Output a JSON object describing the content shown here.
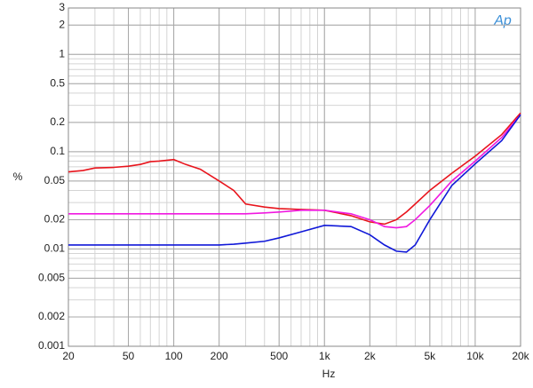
{
  "chart_data": {
    "type": "line",
    "x_label": "Hz",
    "y_label": "%",
    "logo": "Ap",
    "x": [
      20,
      25,
      30,
      40,
      50,
      60,
      70,
      80,
      100,
      120,
      150,
      200,
      250,
      300,
      400,
      500,
      700,
      1000,
      1500,
      2000,
      2500,
      3000,
      3500,
      4000,
      5000,
      7000,
      10000,
      15000,
      20000
    ],
    "series": [
      {
        "color": "#e8141c",
        "values": [
          0.062,
          0.064,
          0.068,
          0.069,
          0.071,
          0.074,
          0.079,
          0.08,
          0.083,
          0.074,
          0.066,
          0.05,
          0.04,
          0.029,
          0.027,
          0.026,
          0.0255,
          0.025,
          0.022,
          0.019,
          0.018,
          0.02,
          0.024,
          0.029,
          0.04,
          0.06,
          0.09,
          0.15,
          0.25
        ]
      },
      {
        "color": "#f018e0",
        "values": [
          0.023,
          0.023,
          0.023,
          0.023,
          0.023,
          0.023,
          0.023,
          0.023,
          0.023,
          0.023,
          0.023,
          0.023,
          0.023,
          0.023,
          0.0235,
          0.024,
          0.025,
          0.025,
          0.023,
          0.02,
          0.017,
          0.0165,
          0.017,
          0.02,
          0.028,
          0.05,
          0.08,
          0.14,
          0.24
        ]
      },
      {
        "color": "#1018d8",
        "values": [
          0.011,
          0.011,
          0.011,
          0.011,
          0.011,
          0.011,
          0.011,
          0.011,
          0.011,
          0.011,
          0.011,
          0.011,
          0.0112,
          0.0115,
          0.012,
          0.013,
          0.015,
          0.0175,
          0.017,
          0.014,
          0.011,
          0.0095,
          0.0093,
          0.011,
          0.02,
          0.045,
          0.075,
          0.13,
          0.24
        ]
      }
    ],
    "xlim": [
      20,
      20000
    ],
    "ylim": [
      0.001,
      3
    ],
    "x_log": true,
    "y_log": true,
    "grid": true,
    "minor_grid": true,
    "xticks": [
      20,
      50,
      100,
      200,
      500,
      {
        "value": 1000,
        "label": "1k"
      },
      {
        "value": 2000,
        "label": "2k"
      },
      {
        "value": 5000,
        "label": "5k"
      },
      {
        "value": 10000,
        "label": "10k"
      },
      {
        "value": 20000,
        "label": "20k"
      }
    ],
    "yticks": [
      0.001,
      0.002,
      0.005,
      0.01,
      0.02,
      0.05,
      0.1,
      0.2,
      0.5,
      1,
      2,
      3
    ]
  }
}
